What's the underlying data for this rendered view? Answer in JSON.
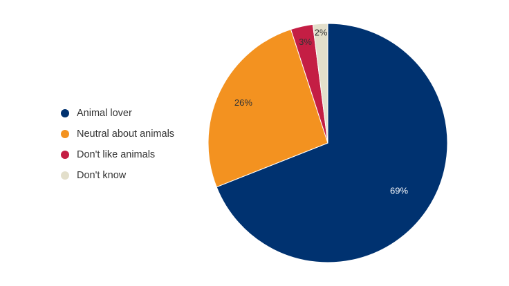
{
  "chart_data": {
    "type": "pie",
    "categories": [
      "Animal lover",
      "Neutral about animals",
      "Don't like animals",
      "Don't know"
    ],
    "values": [
      69,
      26,
      3,
      2
    ],
    "labels": [
      "69%",
      "26%",
      "3%",
      "2%"
    ],
    "colors": [
      "#003270",
      "#f39220",
      "#c41e44",
      "#e3dfcb"
    ],
    "label_colors": [
      "#ffffff",
      "#333333",
      "#333333",
      "#333333"
    ],
    "start": "12 o'clock",
    "direction": "clockwise",
    "legend_position": "left",
    "title": "",
    "xlabel": "",
    "ylabel": ""
  }
}
